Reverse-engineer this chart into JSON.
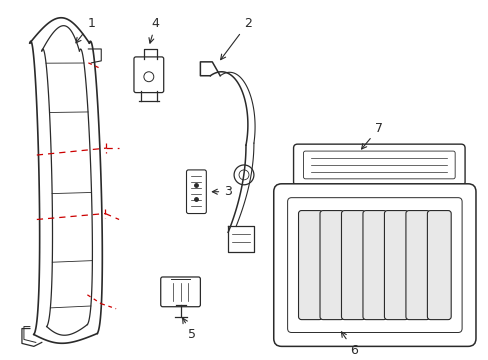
{
  "bg_color": "#ffffff",
  "line_color": "#2a2a2a",
  "red_dash_color": "#cc0000",
  "label_color": "#000000",
  "label_fontsize": 9
}
